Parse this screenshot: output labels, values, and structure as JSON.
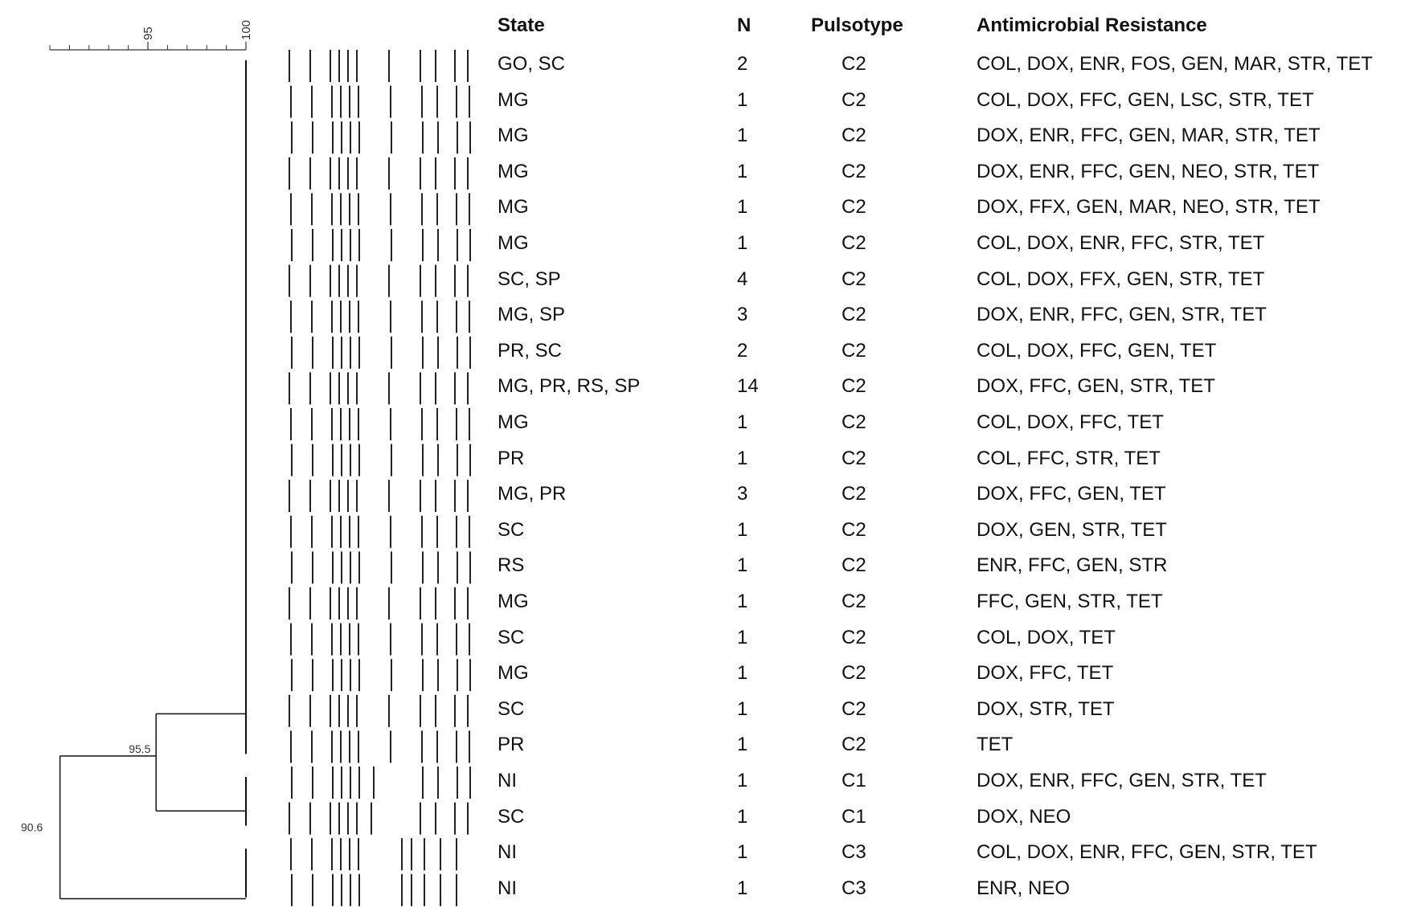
{
  "headers": {
    "state": "State",
    "n": "N",
    "pulsotype": "Pulsotype",
    "resistance": "Antimicrobial Resistance"
  },
  "scale": {
    "ticks": [
      {
        "value": 95,
        "label": "95"
      },
      {
        "value": 100,
        "label": "100"
      }
    ],
    "min": 90,
    "max": 100,
    "minor_step": 1
  },
  "tree": {
    "node_outer": {
      "similarity": 90.6,
      "label": "90.6"
    },
    "node_inner": {
      "similarity": 95.5,
      "label": "95.5"
    },
    "clusters": [
      {
        "name": "C2-cluster",
        "from": 0,
        "to": 19
      },
      {
        "name": "C1-cluster",
        "from": 20,
        "to": 21
      },
      {
        "name": "C3-cluster",
        "from": 22,
        "to": 23
      }
    ]
  },
  "band_patterns": {
    "A": [
      0,
      1,
      2,
      3,
      4,
      5,
      7,
      8,
      9,
      10,
      11
    ],
    "B": [
      0,
      1,
      2,
      3,
      4,
      5,
      6,
      8,
      9,
      10,
      11
    ],
    "C": [
      0,
      1,
      2,
      3,
      4,
      5,
      7,
      8,
      9,
      10
    ],
    "D": [
      0,
      1,
      2,
      3,
      4,
      5,
      6,
      7,
      8,
      9,
      10
    ]
  },
  "rows": [
    {
      "state": "GO, SC",
      "n": "2",
      "pulsotype": "C2",
      "resistance": "COL, DOX, ENR, FOS, GEN, MAR, STR, TET",
      "pattern": "A"
    },
    {
      "state": "MG",
      "n": "1",
      "pulsotype": "C2",
      "resistance": "COL, DOX, FFC, GEN, LSC, STR, TET",
      "pattern": "A"
    },
    {
      "state": "MG",
      "n": "1",
      "pulsotype": "C2",
      "resistance": "DOX, ENR, FFC, GEN, MAR, STR, TET",
      "pattern": "A"
    },
    {
      "state": "MG",
      "n": "1",
      "pulsotype": "C2",
      "resistance": "DOX, ENR, FFC, GEN, NEO, STR, TET",
      "pattern": "A"
    },
    {
      "state": "MG",
      "n": "1",
      "pulsotype": "C2",
      "resistance": "DOX, FFX, GEN, MAR, NEO, STR, TET",
      "pattern": "A"
    },
    {
      "state": "MG",
      "n": "1",
      "pulsotype": "C2",
      "resistance": "COL, DOX, ENR, FFC, STR, TET",
      "pattern": "A"
    },
    {
      "state": "SC, SP",
      "n": "4",
      "pulsotype": "C2",
      "resistance": "COL, DOX, FFX, GEN, STR, TET",
      "pattern": "A"
    },
    {
      "state": "MG, SP",
      "n": "3",
      "pulsotype": "C2",
      "resistance": "DOX, ENR, FFC, GEN, STR, TET",
      "pattern": "A"
    },
    {
      "state": "PR, SC",
      "n": "2",
      "pulsotype": "C2",
      "resistance": "COL, DOX, FFC, GEN, TET",
      "pattern": "A"
    },
    {
      "state": "MG, PR, RS, SP",
      "n": "14",
      "pulsotype": "C2",
      "resistance": "DOX, FFC, GEN, STR, TET",
      "pattern": "A"
    },
    {
      "state": "MG",
      "n": "1",
      "pulsotype": "C2",
      "resistance": "COL, DOX, FFC, TET",
      "pattern": "A"
    },
    {
      "state": "PR",
      "n": "1",
      "pulsotype": "C2",
      "resistance": "COL, FFC, STR, TET",
      "pattern": "A"
    },
    {
      "state": "MG, PR",
      "n": "3",
      "pulsotype": "C2",
      "resistance": "DOX, FFC, GEN, TET",
      "pattern": "A"
    },
    {
      "state": "SC",
      "n": "1",
      "pulsotype": "C2",
      "resistance": "DOX, GEN, STR, TET",
      "pattern": "A"
    },
    {
      "state": "RS",
      "n": "1",
      "pulsotype": "C2",
      "resistance": "ENR, FFC, GEN, STR",
      "pattern": "A"
    },
    {
      "state": "MG",
      "n": "1",
      "pulsotype": "C2",
      "resistance": "FFC, GEN, STR, TET",
      "pattern": "A"
    },
    {
      "state": "SC",
      "n": "1",
      "pulsotype": "C2",
      "resistance": "COL, DOX, TET",
      "pattern": "A"
    },
    {
      "state": "MG",
      "n": "1",
      "pulsotype": "C2",
      "resistance": "DOX, FFC, TET",
      "pattern": "A"
    },
    {
      "state": "SC",
      "n": "1",
      "pulsotype": "C2",
      "resistance": "DOX, STR, TET",
      "pattern": "A"
    },
    {
      "state": "PR",
      "n": "1",
      "pulsotype": "C2",
      "resistance": "TET",
      "pattern": "A"
    },
    {
      "state": "NI",
      "n": "1",
      "pulsotype": "C1",
      "resistance": "DOX, ENR,  FFC, GEN, STR, TET",
      "pattern": "B"
    },
    {
      "state": "SC",
      "n": "1",
      "pulsotype": "C1",
      "resistance": "DOX, NEO",
      "pattern": "B"
    },
    {
      "state": "NI",
      "n": "1",
      "pulsotype": "C3",
      "resistance": "COL, DOX, ENR, FFC, GEN, STR, TET",
      "pattern": "D"
    },
    {
      "state": "NI",
      "n": "1",
      "pulsotype": "C3",
      "resistance": "ENR, NEO",
      "pattern": "D"
    }
  ]
}
